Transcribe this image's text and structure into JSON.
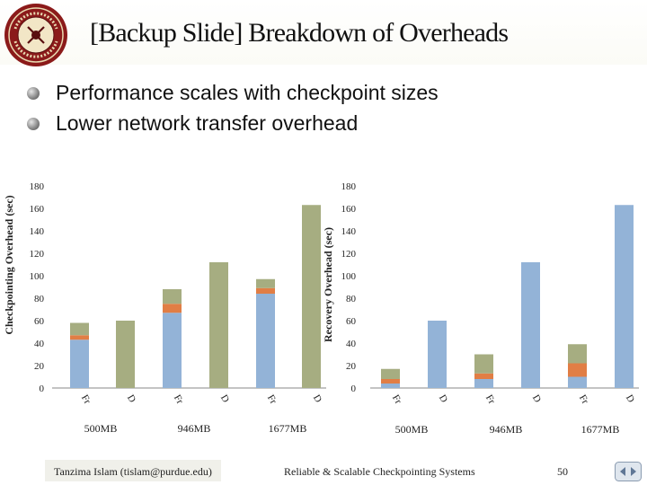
{
  "slide": {
    "title": "[Backup Slide] Breakdown of Overheads",
    "bullets": [
      "Performance scales with checkpoint sizes",
      "Lower network transfer overhead"
    ],
    "footer_author": "Tanzima Islam (tislam@purdue.edu)",
    "footer_center": "Reliable & Scalable Checkpointing Systems",
    "page_number": "50"
  },
  "colors": {
    "blue": "#93b3d7",
    "orange": "#e17e45",
    "green": "#a6ad81",
    "axis": "#888888",
    "footer_band": "#f0f0ea"
  },
  "chart_data": [
    {
      "type": "bar",
      "stacked": true,
      "ylabel": "Checkpointing Overhead (sec)",
      "ylim": [
        0,
        180
      ],
      "ticks": [
        "0",
        "20",
        "40",
        "60",
        "80",
        "100",
        "120",
        "140",
        "160",
        "180"
      ],
      "groups": [
        "500MB",
        "946MB",
        "1677MB"
      ],
      "categories": [
        "Fr",
        "D",
        "Fr",
        "D",
        "Fr",
        "D"
      ],
      "series": [
        {
          "color": "blue",
          "values": [
            43,
            0,
            67,
            0,
            84,
            0
          ]
        },
        {
          "color": "orange",
          "values": [
            4,
            0,
            8,
            0,
            5,
            0
          ]
        },
        {
          "color": "green",
          "values": [
            11,
            60,
            13,
            112,
            8,
            163
          ]
        }
      ]
    },
    {
      "type": "bar",
      "stacked": true,
      "ylabel": "Recovery Overhead (sec)",
      "ylim": [
        0,
        180
      ],
      "ticks": [
        "0",
        "20",
        "40",
        "60",
        "80",
        "100",
        "120",
        "140",
        "160",
        "180"
      ],
      "groups": [
        "500MB",
        "946MB",
        "1677MB"
      ],
      "categories": [
        "Fr",
        "D",
        "Fr",
        "D",
        "Fr",
        "D"
      ],
      "series": [
        {
          "color": "blue",
          "values": [
            4,
            60,
            8,
            112,
            10,
            163
          ]
        },
        {
          "color": "orange",
          "values": [
            4,
            0,
            5,
            0,
            12,
            0
          ]
        },
        {
          "color": "green",
          "values": [
            9,
            0,
            17,
            0,
            17,
            0
          ]
        }
      ]
    }
  ]
}
